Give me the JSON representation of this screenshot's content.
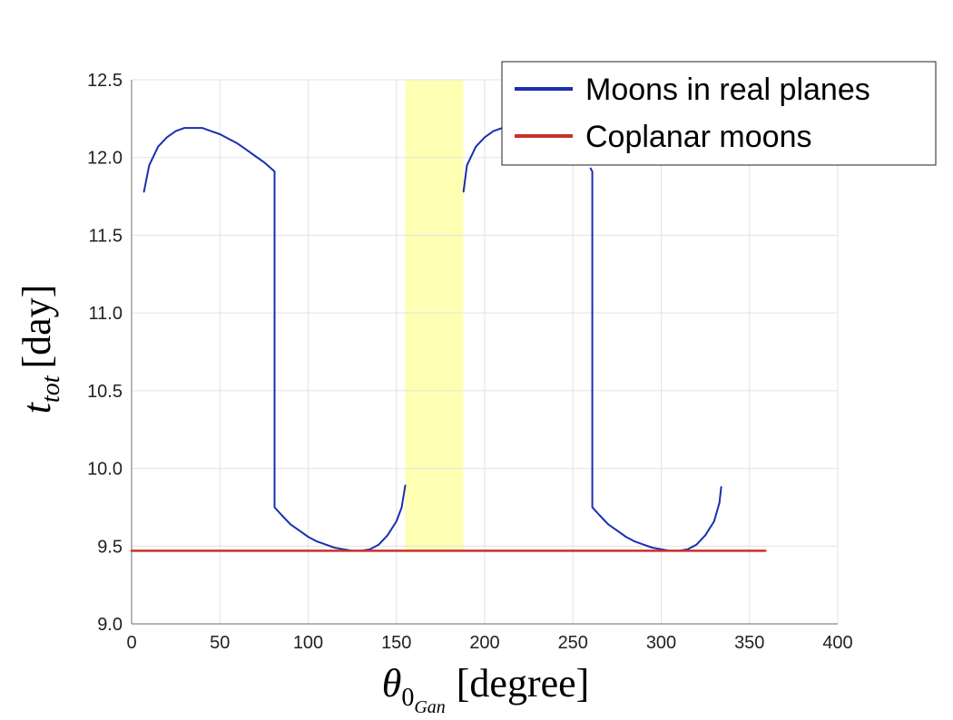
{
  "chart_data": {
    "type": "line",
    "xlabel": {
      "symbol": "θ",
      "subscript": "0",
      "sub_subscript": "Gan",
      "unit": "[degree]"
    },
    "ylabel": {
      "symbol": "t",
      "subscript": "tot",
      "unit": "[day]"
    },
    "xlim": [
      0,
      400
    ],
    "ylim": [
      9.0,
      12.5
    ],
    "xticks": [
      0,
      50,
      100,
      150,
      200,
      250,
      300,
      350,
      400
    ],
    "yticks": [
      9.0,
      9.5,
      10.0,
      10.5,
      11.0,
      11.5,
      12.0,
      12.5
    ],
    "xtick_labels": [
      "0",
      "50",
      "100",
      "150",
      "200",
      "250",
      "300",
      "350",
      "400"
    ],
    "ytick_labels": [
      "9.0",
      "9.5",
      "10.0",
      "10.5",
      "11.0",
      "11.5",
      "12.0",
      "12.5"
    ],
    "grid": true,
    "legend_position": "top-right",
    "highlight_band": {
      "x_from": 155,
      "x_to": 188,
      "y_from": 9.47,
      "y_to": 12.5,
      "color": "#ffffb3"
    },
    "series": [
      {
        "name": "Moons in real planes",
        "color": "#1a2fb0",
        "segments": [
          {
            "x": [
              7,
              10,
              15,
              20,
              25,
              30,
              35,
              40,
              45,
              50,
              55,
              60,
              65,
              70,
              75,
              80,
              81,
              81,
              85,
              90,
              95,
              100,
              105,
              110,
              115,
              120,
              125,
              130,
              135,
              140,
              145,
              150,
              153,
              155
            ],
            "y": [
              11.78,
              11.95,
              12.07,
              12.13,
              12.17,
              12.19,
              12.19,
              12.19,
              12.17,
              12.15,
              12.12,
              12.09,
              12.05,
              12.01,
              11.97,
              11.92,
              11.91,
              9.75,
              9.7,
              9.64,
              9.6,
              9.56,
              9.53,
              9.51,
              9.49,
              9.48,
              9.47,
              9.47,
              9.48,
              9.51,
              9.57,
              9.66,
              9.75,
              9.89
            ]
          },
          {
            "x": [
              188,
              190,
              195,
              200,
              205,
              210,
              215,
              220
            ],
            "y": [
              11.78,
              11.95,
              12.07,
              12.13,
              12.17,
              12.19,
              12.19,
              12.19
            ]
          },
          {
            "x": [
              260,
              261,
              261,
              265,
              270,
              275,
              280,
              285,
              290,
              295,
              300,
              305,
              310,
              315,
              320,
              325,
              330,
              333,
              334
            ],
            "y": [
              11.93,
              11.91,
              9.75,
              9.7,
              9.64,
              9.6,
              9.56,
              9.53,
              9.51,
              9.49,
              9.48,
              9.47,
              9.47,
              9.48,
              9.51,
              9.57,
              9.66,
              9.78,
              9.88
            ]
          }
        ]
      },
      {
        "name": "Coplanar moons",
        "color": "#c8302a",
        "segments": [
          {
            "x": [
              0,
              359
            ],
            "y": [
              9.47,
              9.47
            ]
          }
        ]
      }
    ]
  }
}
